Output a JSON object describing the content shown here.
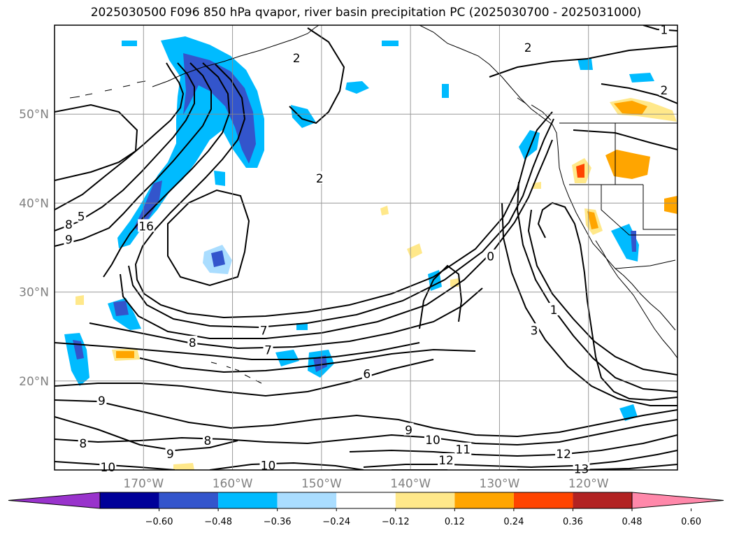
{
  "title": "2025030500 F096 850 hPa qvapor, river basin precipitation PC (2025030700 - 2025031000)",
  "map": {
    "lon_range": [
      -180,
      -110
    ],
    "lat_range": [
      10,
      60
    ],
    "lon_ticks": [
      {
        "lon": -170,
        "label": "170°W"
      },
      {
        "lon": -160,
        "label": "160°W"
      },
      {
        "lon": -150,
        "label": "150°W"
      },
      {
        "lon": -140,
        "label": "140°W"
      },
      {
        "lon": -130,
        "label": "130°W"
      },
      {
        "lon": -120,
        "label": "120°W"
      }
    ],
    "lat_ticks": [
      {
        "lat": 20,
        "label": "20°N"
      },
      {
        "lat": 30,
        "label": "30°N"
      },
      {
        "lat": 40,
        "label": "40°N"
      },
      {
        "lat": 50,
        "label": "50°N"
      }
    ],
    "grid": true
  },
  "colorbar": {
    "colors": [
      "#9933cc",
      "#000099",
      "#3355cc",
      "#00bbff",
      "#aaddff",
      "#ffffff",
      "#ffe88a",
      "#ffa500",
      "#ff4400",
      "#b22222",
      "#ff88aa"
    ],
    "labels": [
      "−0.60",
      "−0.48",
      "−0.36",
      "−0.24",
      "−0.12",
      "0.12",
      "0.24",
      "0.36",
      "0.48",
      "0.60"
    ],
    "extend": "both"
  },
  "contour_labels": [
    {
      "text": "2",
      "lon": -152.8,
      "lat": 56.3
    },
    {
      "text": "2",
      "lon": -126.8,
      "lat": 57.5
    },
    {
      "text": "1",
      "lon": -111.5,
      "lat": 59.5
    },
    {
      "text": "2",
      "lon": -150.2,
      "lat": 42.8
    },
    {
      "text": "2",
      "lon": -111.5,
      "lat": 52.7
    },
    {
      "text": "16",
      "lon": -169.7,
      "lat": 37.4
    },
    {
      "text": "5",
      "lon": -177.0,
      "lat": 38.5
    },
    {
      "text": "8",
      "lon": -178.4,
      "lat": 37.6
    },
    {
      "text": "9",
      "lon": -178.4,
      "lat": 35.9
    },
    {
      "text": "0",
      "lon": -131.0,
      "lat": 34.0
    },
    {
      "text": "1",
      "lon": -123.9,
      "lat": 28.0
    },
    {
      "text": "3",
      "lon": -126.1,
      "lat": 25.7
    },
    {
      "text": "7",
      "lon": -156.5,
      "lat": 25.7
    },
    {
      "text": "8",
      "lon": -164.5,
      "lat": 24.3
    },
    {
      "text": "7",
      "lon": -156.0,
      "lat": 23.5
    },
    {
      "text": "6",
      "lon": -144.9,
      "lat": 20.8
    },
    {
      "text": "9",
      "lon": -174.7,
      "lat": 17.8
    },
    {
      "text": "9",
      "lon": -140.2,
      "lat": 14.5
    },
    {
      "text": "10",
      "lon": -137.5,
      "lat": 13.4
    },
    {
      "text": "11",
      "lon": -134.1,
      "lat": 12.3
    },
    {
      "text": "12",
      "lon": -136.0,
      "lat": 11.1
    },
    {
      "text": "12",
      "lon": -122.8,
      "lat": 11.8
    },
    {
      "text": "13",
      "lon": -120.8,
      "lat": 10.1
    },
    {
      "text": "8",
      "lon": -162.8,
      "lat": 13.3
    },
    {
      "text": "9",
      "lon": -167.0,
      "lat": 11.8
    },
    {
      "text": "10",
      "lon": -174.0,
      "lat": 10.3
    },
    {
      "text": "10",
      "lon": -156.0,
      "lat": 10.5
    },
    {
      "text": "8",
      "lon": -176.8,
      "lat": 13.0
    }
  ]
}
